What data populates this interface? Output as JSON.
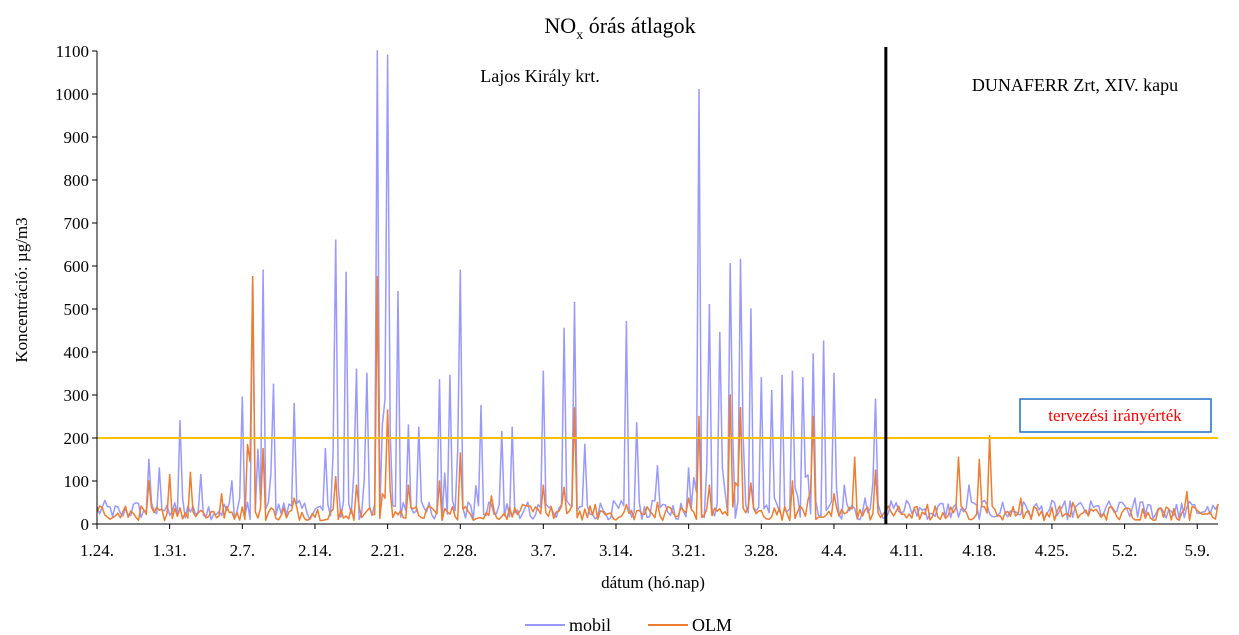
{
  "chart_data": {
    "type": "line",
    "title": "NOx órás átlagok",
    "title_main": "NO",
    "title_sub": "x",
    "title_rest": " órás átlagok",
    "xlabel": "dátum (hó.nap)",
    "ylabel": "Koncentráció: µg/m3",
    "ylim": [
      0,
      1100
    ],
    "yticks": [
      0,
      100,
      200,
      300,
      400,
      500,
      600,
      700,
      800,
      900,
      1000,
      1100
    ],
    "x_start": "1.24.",
    "x_end": "5.11.",
    "xticks": [
      "1.24.",
      "1.31.",
      "2.7.",
      "2.14.",
      "2.21.",
      "2.28.",
      "3.7.",
      "3.14.",
      "3.21.",
      "3.28.",
      "4.4.",
      "4.11.",
      "4.18.",
      "4.25.",
      "5.2.",
      "5.9."
    ],
    "grid": false,
    "legend_position": "bottom",
    "guide_line": {
      "value": 200,
      "label": "tervezési irányérték",
      "color": "#ffc000",
      "label_color": "#ff0000"
    },
    "divider": {
      "date": "4.9.",
      "color": "#000000"
    },
    "annotations": [
      "Lajos Király krt.",
      "DUNAFERR Zrt, XIV. kapu"
    ],
    "series": [
      {
        "name": "mobil",
        "color": "#9999ff",
        "peaks": [
          [
            "1.26.",
            40
          ],
          [
            "1.29.",
            150
          ],
          [
            "1.30.",
            130
          ],
          [
            "2.1.",
            240
          ],
          [
            "2.3.",
            115
          ],
          [
            "2.6.",
            100
          ],
          [
            "2.7.",
            295
          ],
          [
            "2.8.",
            575
          ],
          [
            "2.9.",
            590
          ],
          [
            "2.10.",
            325
          ],
          [
            "2.12.",
            280
          ],
          [
            "2.15.",
            175
          ],
          [
            "2.16.",
            660
          ],
          [
            "2.17.",
            585
          ],
          [
            "2.18.",
            360
          ],
          [
            "2.19.",
            350
          ],
          [
            "2.20.",
            1100
          ],
          [
            "2.21.",
            1090
          ],
          [
            "2.22.",
            540
          ],
          [
            "2.23.",
            230
          ],
          [
            "2.24.",
            225
          ],
          [
            "2.26.",
            335
          ],
          [
            "2.27.",
            345
          ],
          [
            "2.28.",
            590
          ],
          [
            "3.1.",
            275
          ],
          [
            "3.3.",
            215
          ],
          [
            "3.4.",
            225
          ],
          [
            "3.7.",
            355
          ],
          [
            "3.9.",
            455
          ],
          [
            "3.10.",
            515
          ],
          [
            "3.11.",
            185
          ],
          [
            "3.15.",
            470
          ],
          [
            "3.16.",
            235
          ],
          [
            "3.18.",
            135
          ],
          [
            "3.21.",
            130
          ],
          [
            "3.22.",
            1010
          ],
          [
            "3.23.",
            510
          ],
          [
            "3.24.",
            445
          ],
          [
            "3.25.",
            605
          ],
          [
            "3.26.",
            615
          ],
          [
            "3.27.",
            500
          ],
          [
            "3.28.",
            340
          ],
          [
            "3.29.",
            310
          ],
          [
            "3.30.",
            345
          ],
          [
            "3.31.",
            355
          ],
          [
            "4.1.",
            340
          ],
          [
            "4.2.",
            395
          ],
          [
            "4.3.",
            425
          ],
          [
            "4.4.",
            350
          ],
          [
            "4.5.",
            90
          ],
          [
            "4.7.",
            60
          ],
          [
            "4.8.",
            290
          ],
          [
            "4.11.",
            55
          ],
          [
            "4.14.",
            40
          ],
          [
            "4.17.",
            90
          ],
          [
            "4.21.",
            30
          ],
          [
            "4.26.",
            40
          ],
          [
            "5.3.",
            60
          ],
          [
            "5.7.",
            45
          ],
          [
            "5.10.",
            40
          ]
        ]
      },
      {
        "name": "OLM",
        "color": "#ed7d31",
        "peaks": [
          [
            "1.26.",
            25
          ],
          [
            "1.29.",
            100
          ],
          [
            "1.31.",
            115
          ],
          [
            "2.2.",
            120
          ],
          [
            "2.5.",
            70
          ],
          [
            "2.8.",
            575
          ],
          [
            "2.9.",
            175
          ],
          [
            "2.12.",
            60
          ],
          [
            "2.16.",
            110
          ],
          [
            "2.18.",
            90
          ],
          [
            "2.20.",
            575
          ],
          [
            "2.21.",
            265
          ],
          [
            "2.23.",
            90
          ],
          [
            "2.26.",
            100
          ],
          [
            "2.28.",
            165
          ],
          [
            "3.2.",
            65
          ],
          [
            "3.5.",
            45
          ],
          [
            "3.7.",
            90
          ],
          [
            "3.9.",
            85
          ],
          [
            "3.10.",
            270
          ],
          [
            "3.12.",
            45
          ],
          [
            "3.15.",
            45
          ],
          [
            "3.18.",
            50
          ],
          [
            "3.21.",
            60
          ],
          [
            "3.22.",
            250
          ],
          [
            "3.23.",
            90
          ],
          [
            "3.25.",
            300
          ],
          [
            "3.26.",
            270
          ],
          [
            "3.27.",
            95
          ],
          [
            "3.31.",
            100
          ],
          [
            "4.2.",
            250
          ],
          [
            "4.4.",
            70
          ],
          [
            "4.6.",
            155
          ],
          [
            "4.8.",
            125
          ],
          [
            "4.10.",
            30
          ],
          [
            "4.13.",
            45
          ],
          [
            "4.16.",
            155
          ],
          [
            "4.18.",
            150
          ],
          [
            "4.19.",
            205
          ],
          [
            "4.22.",
            60
          ],
          [
            "4.27.",
            50
          ],
          [
            "5.2.",
            35
          ],
          [
            "5.8.",
            75
          ],
          [
            "5.11.",
            45
          ]
        ]
      }
    ]
  }
}
